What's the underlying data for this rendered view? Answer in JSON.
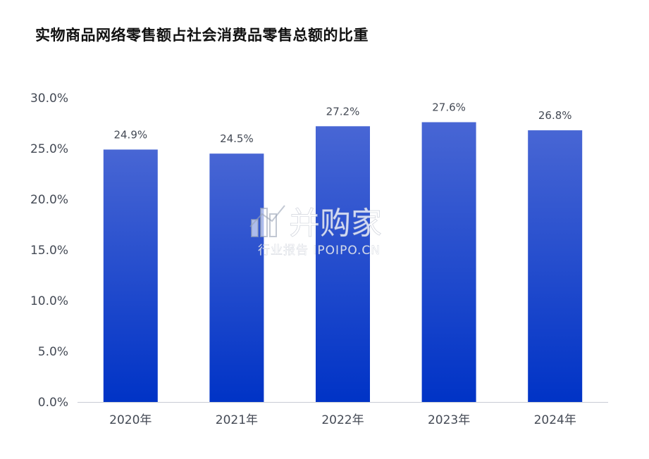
{
  "title": "实物商品网络零售额占社会消费品零售总额的比重",
  "watermark": {
    "main": "并购家",
    "sub": "行业报告 IPOIPO.CN"
  },
  "colors": {
    "bar_top": "#4866d4",
    "bar_bottom": "#0033c6",
    "axis": "#c8ccd4",
    "text": "#444a55"
  },
  "chart_data": {
    "type": "bar",
    "categories": [
      "2020年",
      "2021年",
      "2022年",
      "2023年",
      "2024年"
    ],
    "values": [
      24.9,
      24.5,
      27.2,
      27.6,
      26.8
    ],
    "data_labels": [
      "24.9%",
      "24.5%",
      "27.2%",
      "27.6%",
      "26.8%"
    ],
    "y_ticks": [
      "0.0%",
      "5.0%",
      "10.0%",
      "15.0%",
      "20.0%",
      "25.0%",
      "30.0%"
    ],
    "ylim": [
      0,
      30
    ],
    "ystep": 5,
    "grid": false,
    "legend": "none",
    "xlabel": "",
    "ylabel": ""
  }
}
